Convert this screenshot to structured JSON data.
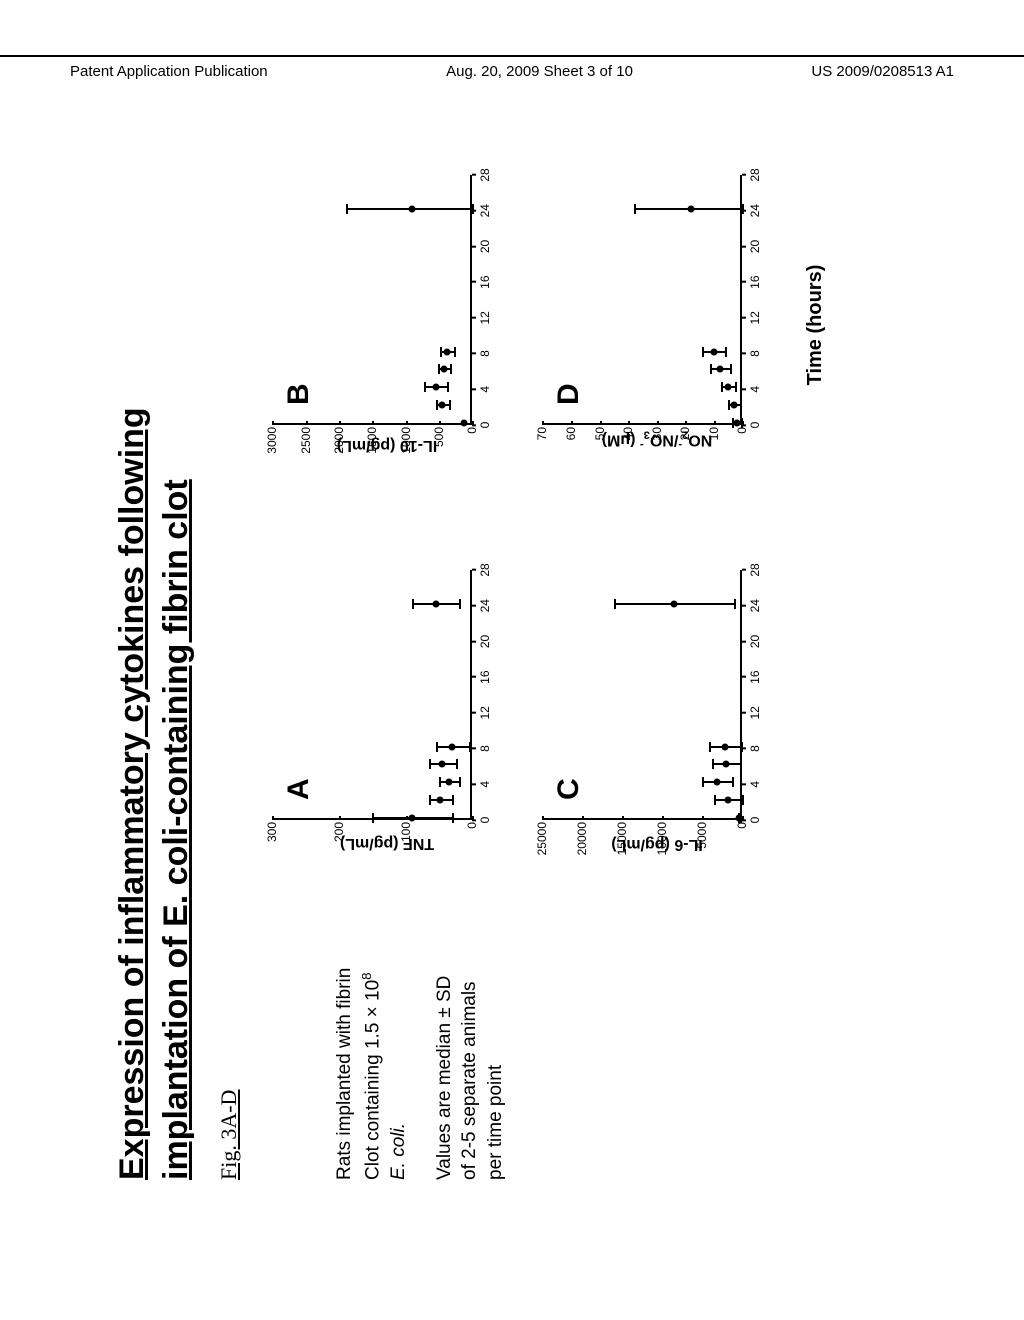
{
  "header": {
    "left": "Patent Application Publication",
    "center": "Aug. 20, 2009  Sheet 3 of 10",
    "right": "US 2009/0208513 A1"
  },
  "title_line1": "Expression of inflammatory cytokines following",
  "title_line2": "implantation of E. coli-containing fibrin clot",
  "fig_label": "Fig. 3A-D",
  "side": {
    "p1_l1": "Rats implanted with fibrin",
    "p1_l2_pre": "Clot containing 1.5 × 10",
    "p1_l2_sup": "8",
    "p1_l3": "E. coli.",
    "p2_l1": "Values are median ± SD",
    "p2_l2": "of 2-5 separate animals",
    "p2_l3": "per time point"
  },
  "x_axis_label": "Time (hours)",
  "x_ticks": [
    0,
    4,
    8,
    12,
    16,
    20,
    24,
    28
  ],
  "panels": {
    "A": {
      "letter": "A",
      "ylabel": "TNF (pg/mL)",
      "ymax": 300,
      "yticks": [
        0,
        100,
        200,
        300
      ],
      "data": [
        {
          "x": 0,
          "y": 90,
          "err": 120
        },
        {
          "x": 2,
          "y": 48,
          "err": 35
        },
        {
          "x": 4,
          "y": 35,
          "err": 30
        },
        {
          "x": 6,
          "y": 45,
          "err": 40
        },
        {
          "x": 8,
          "y": 30,
          "err": 50
        },
        {
          "x": 24,
          "y": 55,
          "err": 70
        }
      ]
    },
    "B": {
      "letter": "B",
      "ylabel": "IL-10 (pg/mL)",
      "ymax": 3000,
      "yticks": [
        0,
        500,
        1000,
        1500,
        2000,
        2500,
        3000
      ],
      "data": [
        {
          "x": 0,
          "y": 120,
          "err": 0
        },
        {
          "x": 2,
          "y": 450,
          "err": 200
        },
        {
          "x": 4,
          "y": 550,
          "err": 350
        },
        {
          "x": 6,
          "y": 420,
          "err": 180
        },
        {
          "x": 8,
          "y": 380,
          "err": 200
        },
        {
          "x": 24,
          "y": 900,
          "err": 2000
        }
      ]
    },
    "C": {
      "letter": "C",
      "ylabel": "IL-6 (pg/mL)",
      "ymax": 25000,
      "yticks": [
        0,
        5000,
        10000,
        15000,
        20000,
        25000
      ],
      "data": [
        {
          "x": 0,
          "y": 400,
          "err": 300
        },
        {
          "x": 2,
          "y": 1800,
          "err": 3500
        },
        {
          "x": 4,
          "y": 3200,
          "err": 3800
        },
        {
          "x": 6,
          "y": 2000,
          "err": 3500
        },
        {
          "x": 8,
          "y": 2200,
          "err": 4000
        },
        {
          "x": 24,
          "y": 8500,
          "err": 15000
        }
      ]
    },
    "D": {
      "letter": "D",
      "ylabel_html": "NO2-/NO3- (μM)",
      "ymax": 70,
      "yticks": [
        0,
        10,
        20,
        30,
        40,
        50,
        60,
        70
      ],
      "data": [
        {
          "x": 0,
          "y": 2,
          "err": 3
        },
        {
          "x": 2,
          "y": 3,
          "err": 4
        },
        {
          "x": 4,
          "y": 5,
          "err": 5
        },
        {
          "x": 6,
          "y": 8,
          "err": 7
        },
        {
          "x": 8,
          "y": 10,
          "err": 8
        },
        {
          "x": 24,
          "y": 18,
          "err": 40
        }
      ]
    }
  },
  "colors": {
    "bg": "#ffffff",
    "line": "#000000",
    "text": "#000000"
  }
}
